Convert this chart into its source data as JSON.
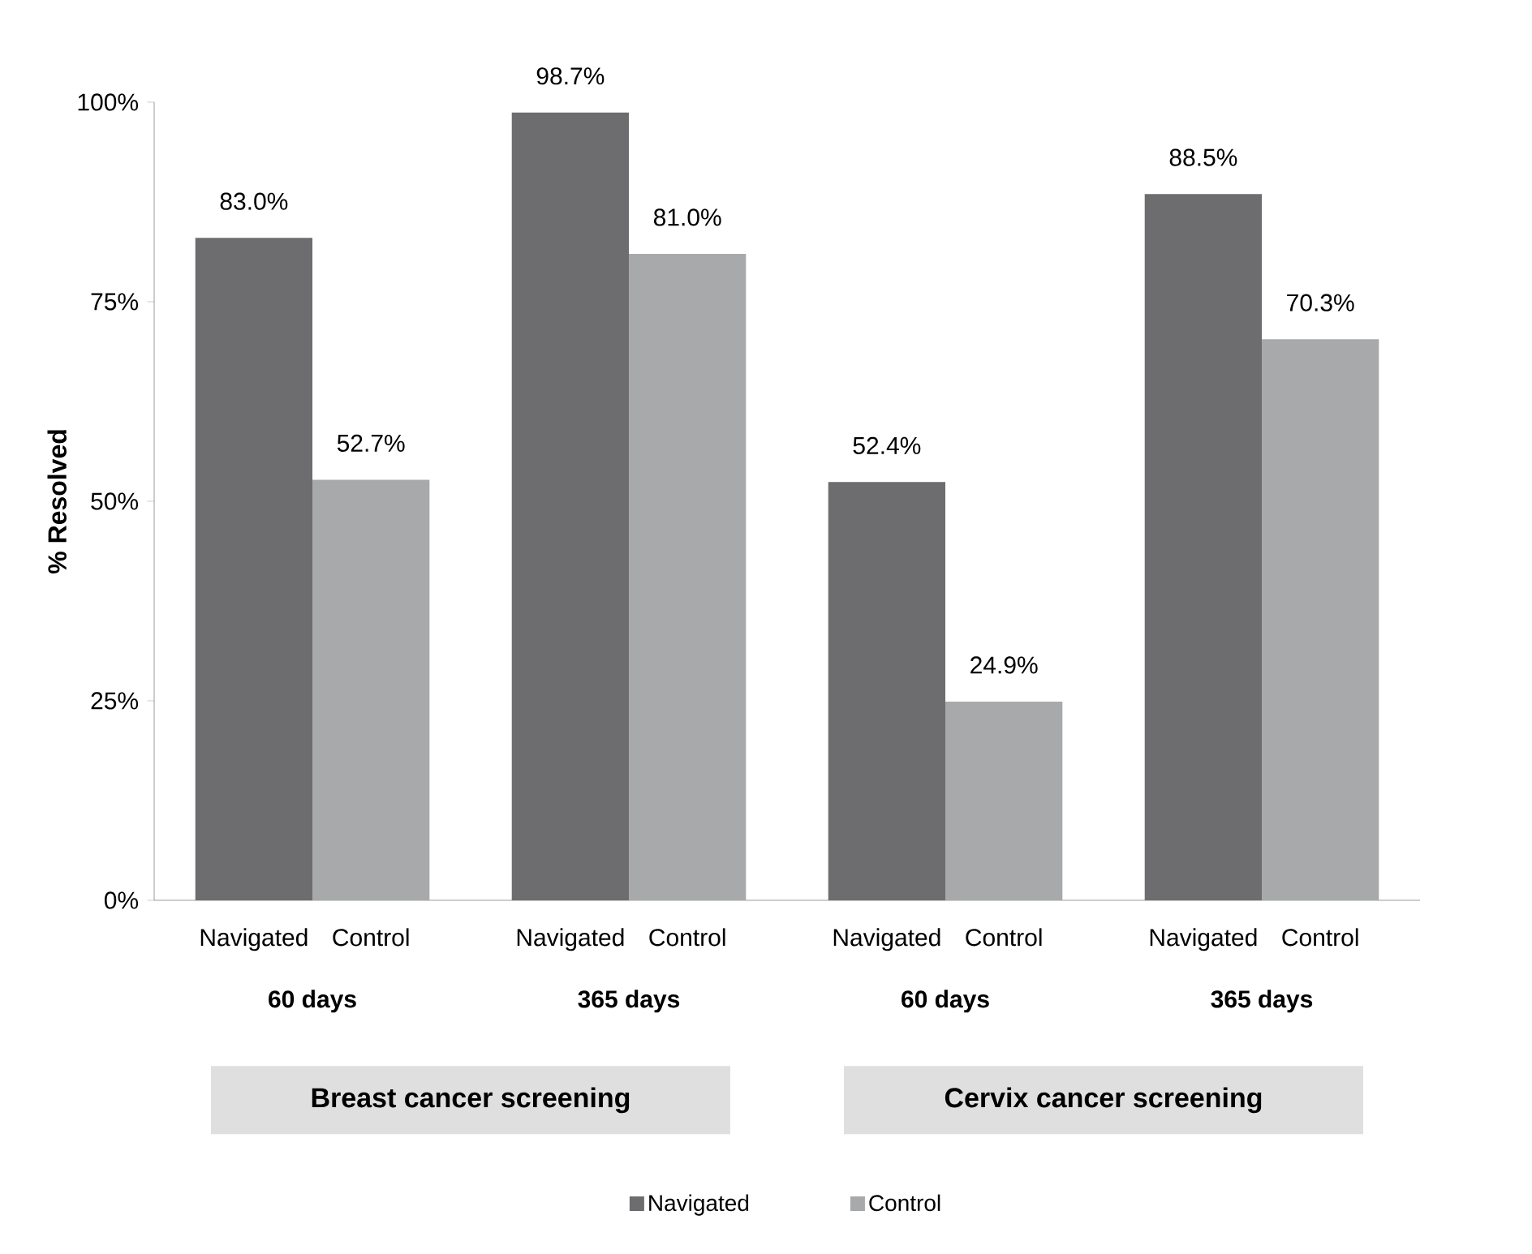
{
  "chart_data": {
    "type": "bar",
    "ylabel": "% Resolved",
    "categories": [
      "60 days",
      "365 days",
      "60 days",
      "365 days"
    ],
    "series": [
      {
        "name": "Navigated",
        "color": "#6d6d6f",
        "values": [
          83.0,
          98.7,
          52.4,
          88.5
        ],
        "value_labels": [
          "83.0%",
          "98.7%",
          "52.4%",
          "88.5%"
        ]
      },
      {
        "name": "Control",
        "color": "#a8a9ab",
        "values": [
          52.7,
          81.0,
          24.9,
          70.3
        ],
        "value_labels": [
          "52.7%",
          "81.0%",
          "24.9%",
          "70.3%"
        ]
      }
    ],
    "ylim": [
      0,
      100
    ],
    "yticks": [
      {
        "value": 0,
        "label": "0%"
      },
      {
        "value": 25,
        "label": "25%"
      },
      {
        "value": 50,
        "label": "50%"
      },
      {
        "value": 75,
        "label": "75%"
      },
      {
        "value": 100,
        "label": "100%"
      }
    ],
    "annotations": [
      "Breast cancer screening",
      "Cervix cancer screening"
    ],
    "legend": "bottom"
  }
}
